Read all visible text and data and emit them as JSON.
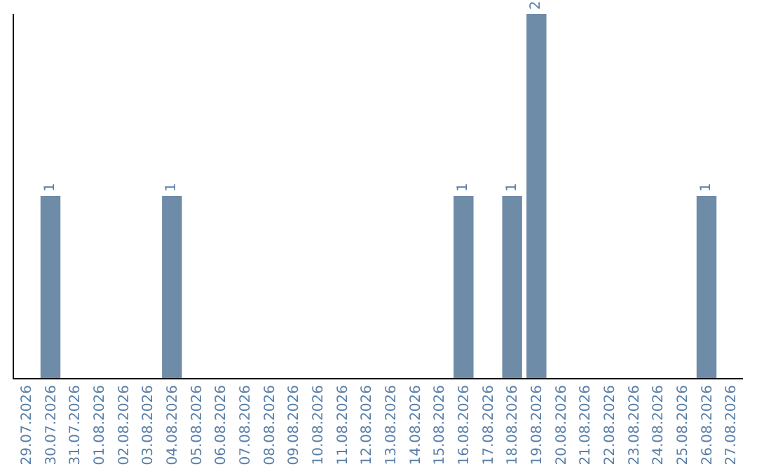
{
  "chart_data": {
    "type": "bar",
    "categories": [
      "29.07.2026",
      "30.07.2026",
      "31.07.2026",
      "01.08.2026",
      "02.08.2026",
      "03.08.2026",
      "04.08.2026",
      "05.08.2026",
      "06.08.2026",
      "07.08.2026",
      "08.08.2026",
      "09.08.2026",
      "10.08.2026",
      "11.08.2026",
      "12.08.2026",
      "13.08.2026",
      "14.08.2026",
      "15.08.2026",
      "16.08.2026",
      "17.08.2026",
      "18.08.2026",
      "19.08.2026",
      "20.08.2026",
      "21.08.2026",
      "22.08.2026",
      "23.08.2026",
      "24.08.2026",
      "25.08.2026",
      "26.08.2026",
      "27.08.2026"
    ],
    "values": [
      0,
      1,
      0,
      0,
      0,
      0,
      1,
      0,
      0,
      0,
      0,
      0,
      0,
      0,
      0,
      0,
      0,
      0,
      1,
      0,
      1,
      2,
      0,
      0,
      0,
      0,
      0,
      0,
      1,
      0
    ],
    "value_labels": [
      null,
      "1",
      null,
      null,
      null,
      null,
      "1",
      null,
      null,
      null,
      null,
      null,
      null,
      null,
      null,
      null,
      null,
      null,
      "1",
      null,
      "1",
      "2",
      null,
      null,
      null,
      null,
      null,
      null,
      "1",
      null
    ],
    "color": "#6e8ca8",
    "ylim": [
      0,
      2
    ],
    "tick_labels": "x",
    "grid": false,
    "legend": false
  }
}
